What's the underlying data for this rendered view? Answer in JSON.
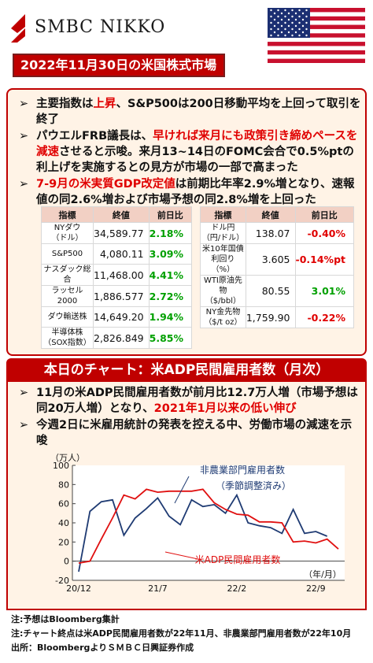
{
  "brand": {
    "logo_text": "SMBC NIKKO",
    "logo_icon": "smbc-nikko-logo",
    "flag_icon": "us-flag"
  },
  "banner": "2022年11月30日の米国株式市場",
  "bullets": [
    {
      "mark": "➢",
      "parts": [
        {
          "t": "主要指数は",
          "c": ""
        },
        {
          "t": "上昇",
          "c": "red"
        },
        {
          "t": "、S&P500は200日移動平均を上回って取引を終了",
          "c": ""
        }
      ]
    },
    {
      "mark": "➢",
      "parts": [
        {
          "t": "パウエルFRB議長は、",
          "c": ""
        },
        {
          "t": "早ければ来月にも政策引き締めペースを減速",
          "c": "red"
        },
        {
          "t": "させると示唆。来月13~14日のFOMC会合で0.5%ptの利上げを実施するとの見方が市場の一部で高まった",
          "c": ""
        }
      ]
    },
    {
      "mark": "➢",
      "parts": [
        {
          "t": "7-9月の米実質GDP改定値",
          "c": "red"
        },
        {
          "t": "は前期比年率2.9%増となり、速報値の同2.6%増および市場予想の同2.8%増を上回った",
          "c": ""
        }
      ]
    }
  ],
  "table_left": {
    "headers": [
      "指標",
      "終値",
      "前日比"
    ],
    "rows": [
      {
        "name": "NYダウ\n（ドル）",
        "value": "34,589.77",
        "change": "2.18%",
        "dir": "pos"
      },
      {
        "name": "S&P500",
        "value": "4,080.11",
        "change": "3.09%",
        "dir": "pos"
      },
      {
        "name": "ナスダック総合",
        "value": "11,468.00",
        "change": "4.41%",
        "dir": "pos"
      },
      {
        "name": "ラッセル2000",
        "value": "1,886.577",
        "change": "2.72%",
        "dir": "pos"
      },
      {
        "name": "ダウ輸送株",
        "value": "14,649.20",
        "change": "1.94%",
        "dir": "pos"
      },
      {
        "name": "半導体株\n（SOX指数）",
        "value": "2,826.849",
        "change": "5.85%",
        "dir": "pos"
      }
    ]
  },
  "table_right": {
    "headers": [
      "指標",
      "終値",
      "前日比"
    ],
    "rows": [
      {
        "name": "ドル円\n（円/ドル）",
        "value": "138.07",
        "change": "-0.40%",
        "dir": "neg"
      },
      {
        "name": "米10年国債利回り\n（%）",
        "value": "3.605",
        "change": "-0.14%pt",
        "dir": "neg"
      },
      {
        "name": "WTI原油先物\n（$/bbl）",
        "value": "80.55",
        "change": "3.01%",
        "dir": "pos"
      },
      {
        "name": "NY金先物\n（$/t oz）",
        "value": "1,759.90",
        "change": "-0.22%",
        "dir": "neg"
      }
    ]
  },
  "chart_banner": "本日のチャート：米ADP民間雇用者数（月次）",
  "chart_bullets": [
    {
      "mark": "➢",
      "parts": [
        {
          "t": "11月の米ADP民間雇用者数が前月比12.7万人増（市場予想は同20万人増）となり、",
          "c": ""
        },
        {
          "t": "2021年1月以来の低い伸び",
          "c": "red"
        }
      ]
    },
    {
      "mark": "➢",
      "parts": [
        {
          "t": "今週2日に米雇用統計の発表を控える中、労働市場の減速を示唆",
          "c": ""
        }
      ]
    }
  ],
  "chart_data": {
    "type": "line",
    "unit_label": "（万人）",
    "x_axis_label": "（年/月）",
    "x_tick_labels": [
      "20/12",
      "21/7",
      "22/2",
      "22/9"
    ],
    "y_ticks": [
      -20,
      0,
      20,
      40,
      60,
      80,
      100
    ],
    "ylim": [
      -20,
      100
    ],
    "x": [
      "2020-12",
      "2021-01",
      "2021-02",
      "2021-03",
      "2021-04",
      "2021-05",
      "2021-06",
      "2021-07",
      "2021-08",
      "2021-09",
      "2021-10",
      "2021-11",
      "2021-12",
      "2022-01",
      "2022-02",
      "2022-03",
      "2022-04",
      "2022-05",
      "2022-06",
      "2022-07",
      "2022-08",
      "2022-09",
      "2022-10",
      "2022-11"
    ],
    "series": [
      {
        "name": "非農業部門雇用者数",
        "sub_label": "（季節調整済み）",
        "color": "#1f3b73",
        "values": [
          -11,
          52,
          62,
          64,
          27,
          45,
          55,
          66,
          47,
          38,
          64,
          57,
          59,
          50,
          69,
          40,
          37,
          35,
          29,
          54,
          29,
          31,
          26,
          null
        ]
      },
      {
        "name": "米ADP民間雇用者数",
        "color": "#e01010",
        "values": [
          -2,
          0,
          23,
          45,
          69,
          65,
          75,
          72,
          73,
          73,
          73,
          75,
          61,
          54,
          49,
          48,
          41,
          41,
          40,
          20,
          21,
          19,
          23,
          12.7
        ]
      }
    ]
  },
  "notes": [
    "注:予想はBloomberg集計",
    "注:チャート終点は米ADP民間雇用者数が22年11月、非農業部門雇用者数が22年10月",
    "出所：BloombergよりＳＭＢＣ日興証券作成"
  ]
}
